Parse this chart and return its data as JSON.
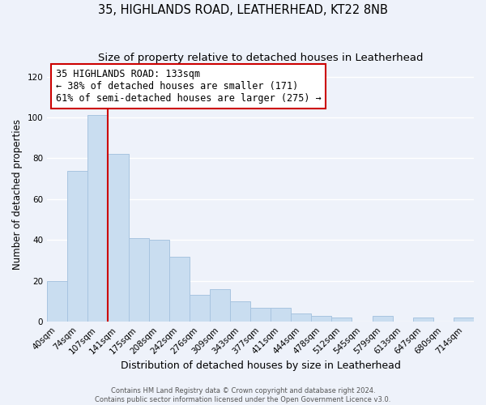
{
  "title": "35, HIGHLANDS ROAD, LEATHERHEAD, KT22 8NB",
  "subtitle": "Size of property relative to detached houses in Leatherhead",
  "xlabel": "Distribution of detached houses by size in Leatherhead",
  "ylabel": "Number of detached properties",
  "bar_labels": [
    "40sqm",
    "74sqm",
    "107sqm",
    "141sqm",
    "175sqm",
    "208sqm",
    "242sqm",
    "276sqm",
    "309sqm",
    "343sqm",
    "377sqm",
    "411sqm",
    "444sqm",
    "478sqm",
    "512sqm",
    "545sqm",
    "579sqm",
    "613sqm",
    "647sqm",
    "680sqm",
    "714sqm"
  ],
  "bar_values": [
    20,
    74,
    101,
    82,
    41,
    40,
    32,
    13,
    16,
    10,
    7,
    7,
    4,
    3,
    2,
    0,
    3,
    0,
    2,
    0,
    2
  ],
  "bar_color": "#c9ddf0",
  "bar_edge_color": "#a8c4e0",
  "vline_color": "#cc0000",
  "ylim": [
    0,
    125
  ],
  "yticks": [
    0,
    20,
    40,
    60,
    80,
    100,
    120
  ],
  "annotation_box_text": "35 HIGHLANDS ROAD: 133sqm\n← 38% of detached houses are smaller (171)\n61% of semi-detached houses are larger (275) →",
  "footer_line1": "Contains HM Land Registry data © Crown copyright and database right 2024.",
  "footer_line2": "Contains public sector information licensed under the Open Government Licence v3.0.",
  "background_color": "#eef2fa",
  "grid_color": "#ffffff",
  "title_fontsize": 10.5,
  "subtitle_fontsize": 9.5,
  "xlabel_fontsize": 9,
  "ylabel_fontsize": 8.5,
  "tick_fontsize": 7.5,
  "annotation_fontsize": 8.5,
  "footer_fontsize": 6
}
